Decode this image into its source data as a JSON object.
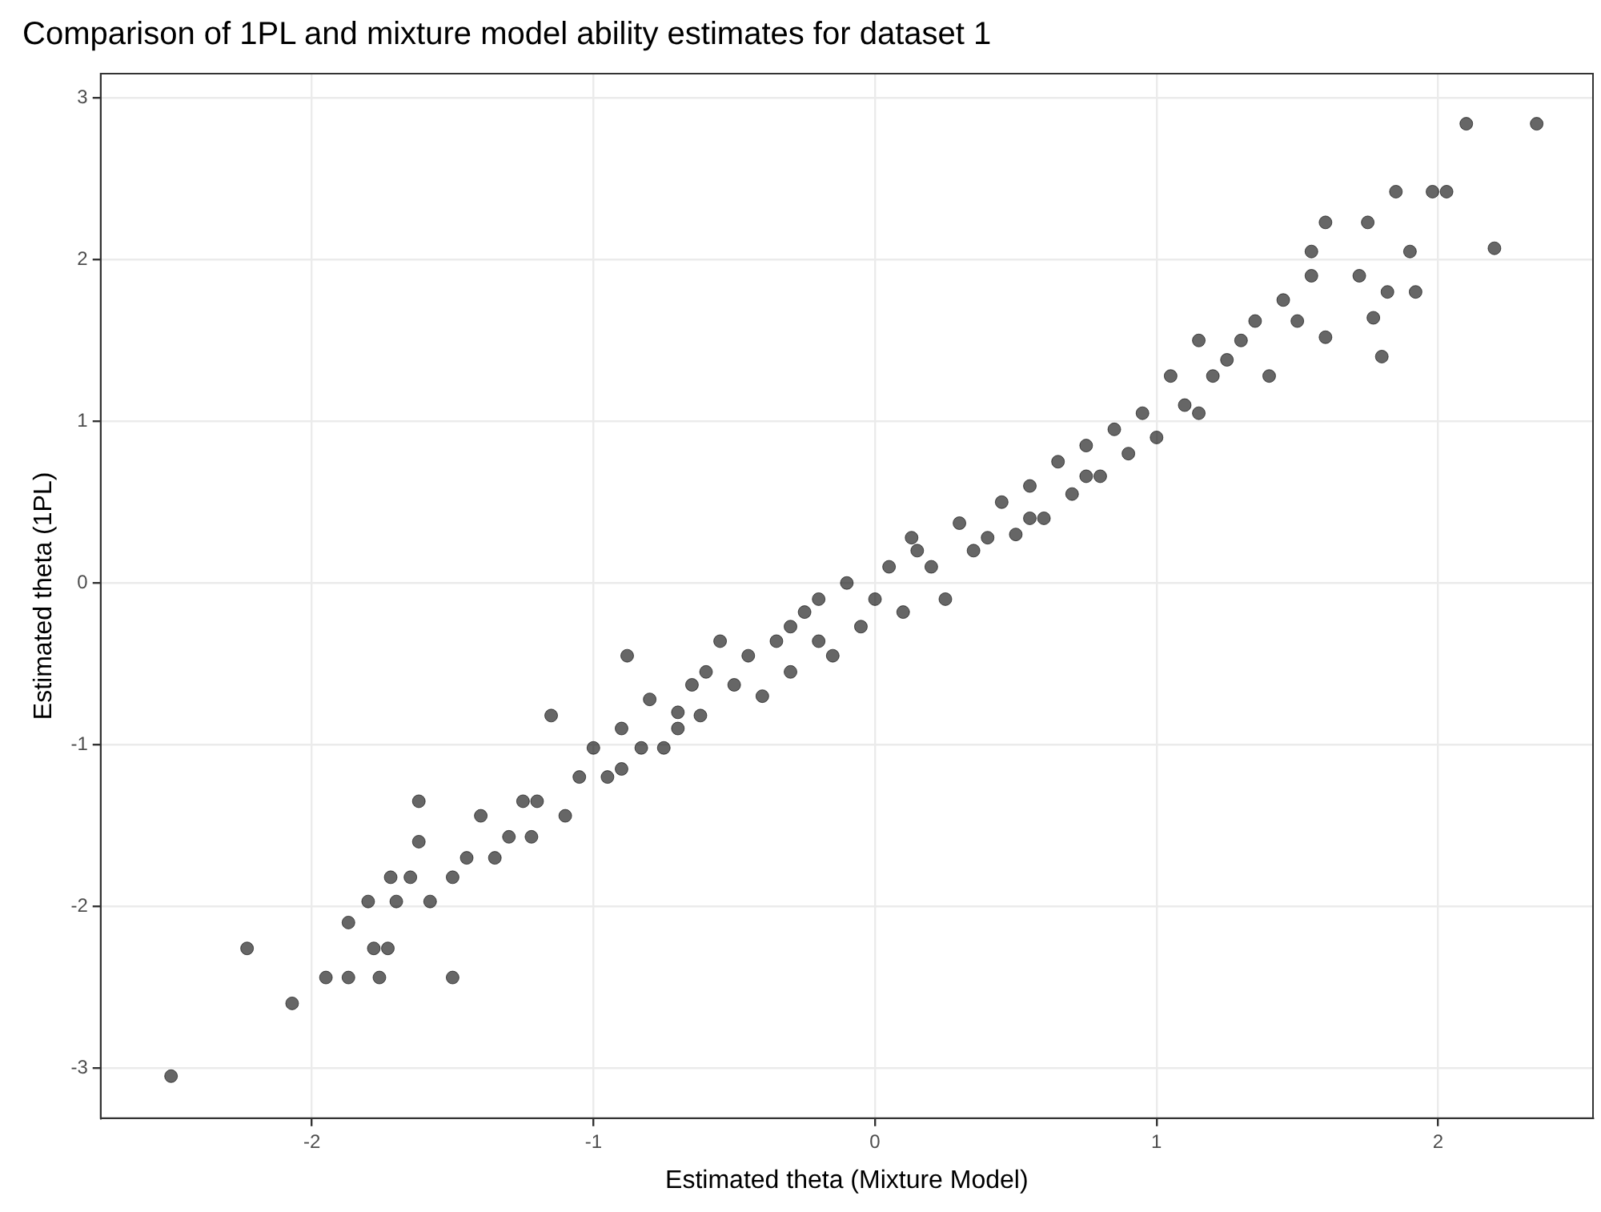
{
  "chart_data": {
    "type": "scatter",
    "title": "Comparison of 1PL and mixture model ability estimates for dataset 1",
    "xlabel": "Estimated theta (Mixture Model)",
    "ylabel": "Estimated theta (1PL)",
    "x": [
      -2.5,
      -2.23,
      -2.07,
      -1.95,
      -1.87,
      -1.87,
      -1.76,
      -1.78,
      -1.73,
      -1.5,
      -1.8,
      -1.7,
      -1.72,
      -1.65,
      -1.62,
      -1.62,
      -1.58,
      -1.5,
      -1.45,
      -1.4,
      -1.35,
      -1.3,
      -1.22,
      -1.25,
      -1.15,
      -1.1,
      -1.05,
      -1.0,
      -0.95,
      -0.9,
      -0.88,
      -0.83,
      -0.8,
      -0.75,
      -0.7,
      -0.65,
      -0.62,
      -0.55,
      -0.5,
      -0.45,
      -0.4,
      -0.35,
      -0.3,
      -0.25,
      -0.2,
      -0.15,
      -0.1,
      -0.05,
      0,
      0.05,
      0.1,
      0.13,
      0.2,
      0.25,
      0.3,
      0.35,
      0.4,
      0.45,
      0.5,
      0.55,
      0.6,
      0.65,
      0.7,
      0.75,
      0.8,
      0.85,
      0.9,
      0.95,
      1.0,
      1.05,
      1.1,
      1.15,
      1.15,
      1.2,
      1.25,
      1.3,
      1.35,
      1.4,
      1.45,
      1.5,
      1.55,
      1.6,
      1.6,
      1.55,
      1.75,
      1.72,
      1.77,
      1.8,
      1.82,
      1.85,
      1.9,
      1.92,
      1.98,
      2.03,
      2.1,
      2.2,
      2.35,
      -0.9,
      -0.6,
      -0.2,
      0.15,
      0.55,
      0.75,
      -1.2,
      -0.7,
      -0.3
    ],
    "values": [
      -3.05,
      -2.26,
      -2.6,
      -2.44,
      -2.44,
      -2.1,
      -2.44,
      -2.26,
      -2.26,
      -2.44,
      -1.97,
      -1.97,
      -1.82,
      -1.82,
      -1.6,
      -1.35,
      -1.97,
      -1.82,
      -1.7,
      -1.44,
      -1.7,
      -1.57,
      -1.57,
      -1.35,
      -0.82,
      -1.44,
      -1.2,
      -1.02,
      -1.2,
      -0.9,
      -0.45,
      -1.02,
      -0.72,
      -1.02,
      -0.9,
      -0.63,
      -0.82,
      -0.36,
      -0.63,
      -0.45,
      -0.7,
      -0.36,
      -0.55,
      -0.18,
      -0.36,
      -0.45,
      0.0,
      -0.27,
      -0.1,
      0.1,
      -0.18,
      0.28,
      0.1,
      -0.1,
      0.37,
      0.2,
      0.28,
      0.5,
      0.3,
      0.6,
      0.4,
      0.75,
      0.55,
      0.85,
      0.66,
      0.95,
      0.8,
      1.05,
      0.9,
      1.28,
      1.1,
      1.05,
      1.5,
      1.28,
      1.38,
      1.5,
      1.62,
      1.28,
      1.75,
      1.62,
      1.9,
      1.52,
      2.23,
      2.05,
      2.23,
      1.9,
      1.64,
      1.4,
      1.8,
      2.42,
      2.05,
      1.8,
      2.42,
      2.42,
      2.84,
      2.07,
      2.84,
      -1.15,
      -0.55,
      -0.1,
      0.2,
      0.4,
      0.66,
      -1.35,
      -0.8,
      -0.27
    ],
    "color": "#000000",
    "marker": "circle",
    "grid": true,
    "xlim": [
      -2.75,
      2.55
    ],
    "xticks": [
      -2,
      -1,
      0,
      1,
      2
    ],
    "ylim": [
      -3.31,
      3.15
    ],
    "yticks": [
      -3,
      -2,
      -1,
      0,
      1,
      2,
      3
    ]
  }
}
